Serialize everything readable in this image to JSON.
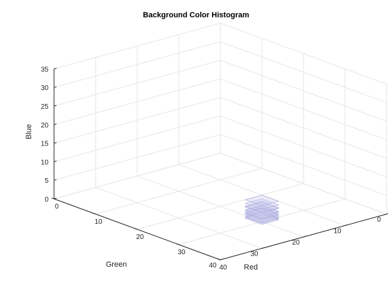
{
  "chart_data": {
    "type": "scatter",
    "plot_kind": "3d-voxel-histogram",
    "title": "Background Color Histogram",
    "xlabel": "Red",
    "ylabel": "Green",
    "zlabel": "Blue",
    "xlim": [
      0,
      40
    ],
    "ylim": [
      0,
      40
    ],
    "zlim": [
      0,
      35
    ],
    "xticks": [
      "0",
      "10",
      "20",
      "30",
      "40"
    ],
    "yticks": [
      "0",
      "10",
      "20",
      "30",
      "40"
    ],
    "zticks": [
      "0",
      "5",
      "10",
      "15",
      "20",
      "25",
      "30",
      "35"
    ],
    "grid": true,
    "box_color": "#262626",
    "grid_color": "#e6e6e6",
    "voxel_color": "#c9c9ee",
    "voxels": [
      {
        "x": 27,
        "y": 17,
        "z": 0
      },
      {
        "x": 27,
        "y": 17,
        "z": 1
      },
      {
        "x": 27,
        "y": 17,
        "z": 2
      },
      {
        "x": 27,
        "y": 17,
        "z": 3
      },
      {
        "x": 27,
        "y": 17,
        "z": 4
      },
      {
        "x": 27,
        "y": 17,
        "z": 5
      },
      {
        "x": 28,
        "y": 18,
        "z": 1
      },
      {
        "x": 28,
        "y": 18,
        "z": 2
      },
      {
        "x": 28,
        "y": 18,
        "z": 3
      },
      {
        "x": 28,
        "y": 18,
        "z": 4
      },
      {
        "x": 29,
        "y": 19,
        "z": 2
      },
      {
        "x": 29,
        "y": 19,
        "z": 3
      }
    ]
  }
}
